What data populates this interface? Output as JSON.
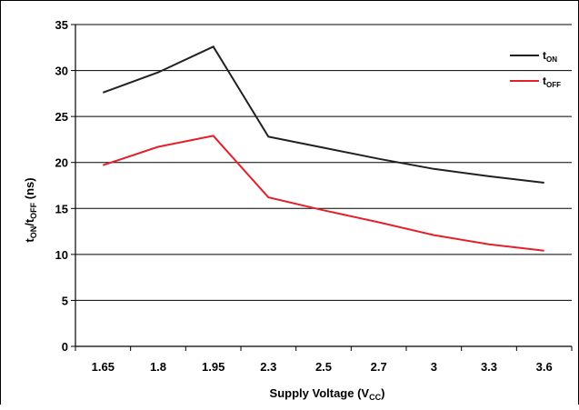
{
  "chart_data": {
    "type": "line",
    "categories": [
      "1.65",
      "1.8",
      "1.95",
      "2.3",
      "2.5",
      "2.7",
      "3",
      "3.3",
      "3.6"
    ],
    "ylim": [
      0,
      35
    ],
    "y_ticks": [
      "0",
      "5",
      "10",
      "15",
      "20",
      "25",
      "30",
      "35"
    ],
    "grid": "horizontal",
    "legend_position": "top-right",
    "xlabel": {
      "main": "Supply Voltage (V",
      "sub": "CC",
      "end": ")"
    },
    "ylabel": {
      "p1": "t",
      "s1": "ON",
      "p2": "/t",
      "s2": "OFF",
      "p3": " (ns)"
    },
    "series": [
      {
        "main": "t",
        "sub": "ON",
        "color": "#231f20",
        "values": [
          27.6,
          29.8,
          32.6,
          22.8,
          21.6,
          20.4,
          19.3,
          18.5,
          17.8
        ]
      },
      {
        "main": "t",
        "sub": "OFF",
        "color": "#e4202a",
        "values": [
          19.7,
          21.7,
          22.9,
          16.2,
          14.8,
          13.5,
          12.1,
          11.1,
          10.4
        ]
      }
    ]
  }
}
